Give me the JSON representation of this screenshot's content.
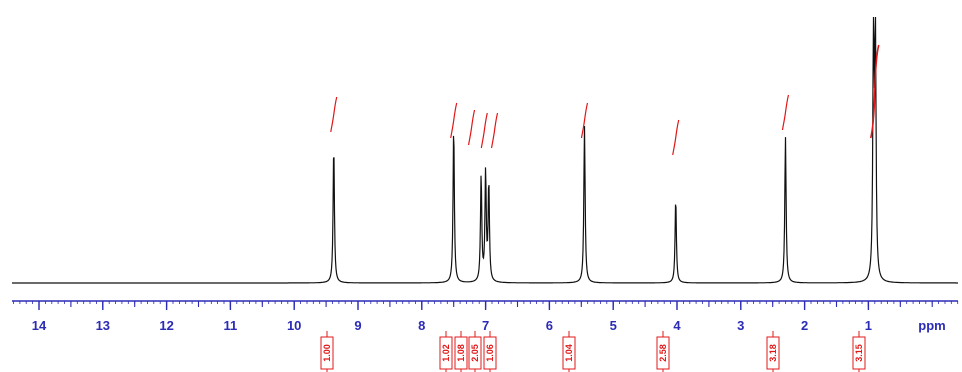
{
  "chart_data": {
    "type": "line",
    "xlabel": "ppm",
    "xlim": [
      14.4,
      -0.7
    ],
    "ylim": [
      0,
      1.0
    ],
    "x_ticks": [
      14,
      13,
      12,
      11,
      10,
      9,
      8,
      7,
      6,
      5,
      4,
      3,
      2,
      1
    ],
    "grid": false,
    "colors": {
      "spectrum": "#111111",
      "axis": "#2b2bb5",
      "integral": "#e01818"
    },
    "peaks": [
      {
        "ppm": 9.38,
        "height": 0.52
      },
      {
        "ppm": 7.5,
        "height": 0.59
      },
      {
        "ppm": 7.07,
        "height": 0.4
      },
      {
        "ppm": 7.0,
        "height": 0.41
      },
      {
        "ppm": 6.95,
        "height": 0.37
      },
      {
        "ppm": 5.45,
        "height": 0.59
      },
      {
        "ppm": 4.02,
        "height": 0.32
      },
      {
        "ppm": 2.3,
        "height": 0.55
      },
      {
        "ppm": 0.92,
        "height": 0.98
      },
      {
        "ppm": 0.89,
        "height": 0.9
      }
    ],
    "integrals": [
      {
        "ppm": 9.38,
        "value": "1.00"
      },
      {
        "ppm": 7.5,
        "value": "1.02"
      },
      {
        "ppm": 7.22,
        "value": "1.08"
      },
      {
        "ppm": 7.02,
        "value": "2.05"
      },
      {
        "ppm": 6.86,
        "value": "1.06"
      },
      {
        "ppm": 5.45,
        "value": "1.04"
      },
      {
        "ppm": 4.02,
        "value": "2.58"
      },
      {
        "ppm": 2.3,
        "value": "3.18"
      },
      {
        "ppm": 0.9,
        "value": "3.15"
      }
    ]
  }
}
